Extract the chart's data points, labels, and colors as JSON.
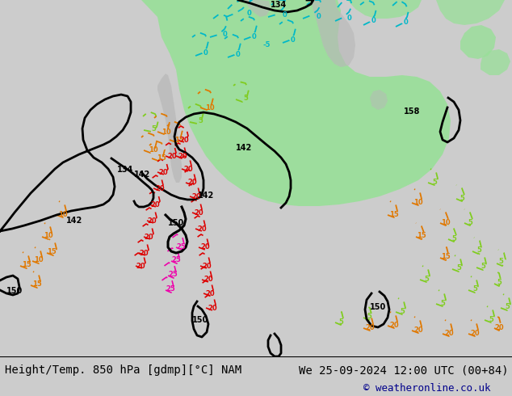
{
  "title_left": "Height/Temp. 850 hPa [gdmp][°C] NAM",
  "title_right": "We 25-09-2024 12:00 UTC (00+84)",
  "copyright": "© weatheronline.co.uk",
  "bg_color": "#d0d0d0",
  "land_green": "#98e098",
  "land_gray": "#b8b8b8",
  "ocean_color": "#d4d4d4",
  "black": "#000000",
  "orange": "#e07800",
  "red": "#dd0000",
  "cyan": "#00b8c8",
  "lime_green": "#80cc20",
  "magenta": "#ee00aa",
  "dark_blue": "#00008b",
  "font_size_main": 10,
  "font_size_copy": 9,
  "font_size_label": 7,
  "fig_w": 6.34,
  "fig_h": 4.9,
  "dpi": 100
}
